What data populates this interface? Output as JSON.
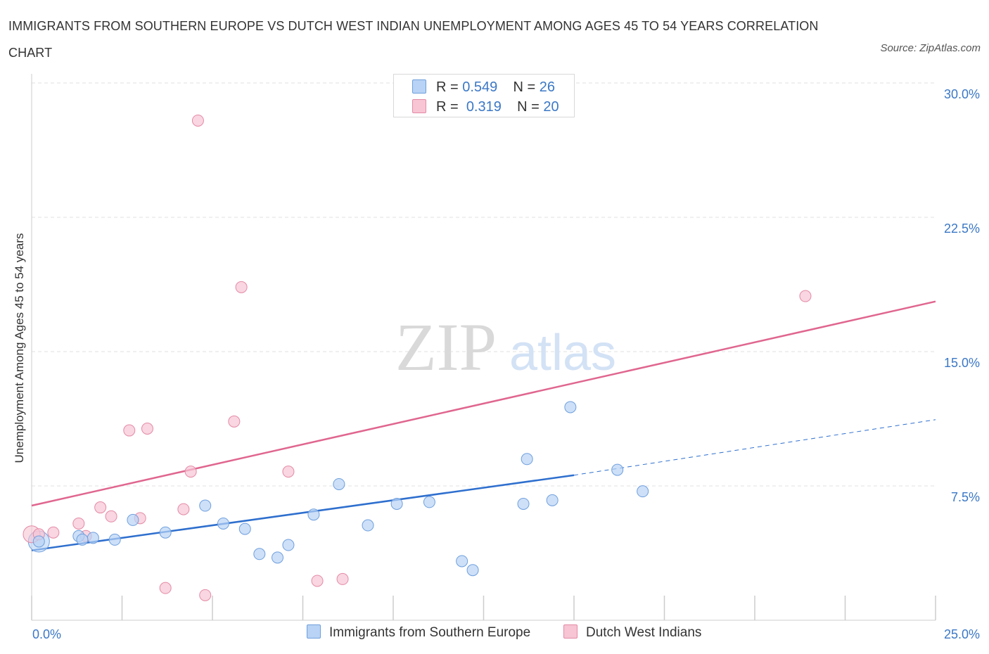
{
  "header": {
    "title": "IMMIGRANTS FROM SOUTHERN EUROPE VS DUTCH WEST INDIAN UNEMPLOYMENT AMONG AGES 45 TO 54 YEARS CORRELATION CHART",
    "source": "Source: ZipAtlas.com"
  },
  "watermark": {
    "zip": "ZIP",
    "atlas": "atlas"
  },
  "legend_top": {
    "rows": [
      {
        "r_label": "R =",
        "r_value": "0.549",
        "n_label": "N =",
        "n_value": "26"
      },
      {
        "r_label": "R =",
        "r_value": "0.319",
        "n_label": "N =",
        "n_value": "20"
      }
    ]
  },
  "legend_bottom": [
    {
      "label": "Immigrants from Southern Europe"
    },
    {
      "label": "Dutch West Indians"
    }
  ],
  "colors": {
    "blue_fill": "#b8d3f5",
    "blue_stroke": "#6f9fdd",
    "blue_line": "#2e6fce",
    "pink_fill": "#f7c5d4",
    "pink_stroke": "#e48aa6",
    "pink_line": "#e0668f",
    "grid": "#e0e0e0",
    "tick_text": "#3b78c6"
  },
  "chart_data": {
    "type": "scatter",
    "ylabel": "Unemployment Among Ages 45 to 54 years",
    "xlim": [
      0,
      25
    ],
    "ylim": [
      0,
      30
    ],
    "x_tick_labels": [
      {
        "value": 0,
        "label": "0.0%"
      },
      {
        "value": 25,
        "label": "25.0%"
      }
    ],
    "y_tick_labels": [
      {
        "value": 7.5,
        "label": "7.5%"
      },
      {
        "value": 15,
        "label": "15.0%"
      },
      {
        "value": 22.5,
        "label": "22.5%"
      },
      {
        "value": 30,
        "label": "30.0%"
      }
    ],
    "series": [
      {
        "name": "Immigrants from Southern Europe",
        "points": [
          [
            0.2,
            4.4
          ],
          [
            1.3,
            4.7
          ],
          [
            1.7,
            4.6
          ],
          [
            2.3,
            4.5
          ],
          [
            2.8,
            5.6
          ],
          [
            3.7,
            4.9
          ],
          [
            4.8,
            6.4
          ],
          [
            5.3,
            5.4
          ],
          [
            5.9,
            5.1
          ],
          [
            6.3,
            3.7
          ],
          [
            6.8,
            3.5
          ],
          [
            7.1,
            4.2
          ],
          [
            7.8,
            5.9
          ],
          [
            8.5,
            7.6
          ],
          [
            9.3,
            5.3
          ],
          [
            10.1,
            6.5
          ],
          [
            11.0,
            6.6
          ],
          [
            11.9,
            3.3
          ],
          [
            12.2,
            2.8
          ],
          [
            13.6,
            6.5
          ],
          [
            14.4,
            6.7
          ],
          [
            13.7,
            9.0
          ],
          [
            14.9,
            11.9
          ],
          [
            16.2,
            8.4
          ],
          [
            16.9,
            7.2
          ],
          [
            1.4,
            4.5
          ]
        ],
        "trend": {
          "x0": 0,
          "y0": 3.9,
          "x1": 15.0,
          "y1": 8.1,
          "x_dash_end": 25,
          "y_dash_end": 11.2
        }
      },
      {
        "name": "Dutch West Indians",
        "points": [
          [
            0.2,
            4.8
          ],
          [
            0.6,
            4.9
          ],
          [
            1.3,
            5.4
          ],
          [
            1.9,
            6.3
          ],
          [
            2.2,
            5.8
          ],
          [
            2.7,
            10.6
          ],
          [
            3.0,
            5.7
          ],
          [
            3.2,
            10.7
          ],
          [
            3.7,
            1.8
          ],
          [
            4.2,
            6.2
          ],
          [
            4.4,
            8.3
          ],
          [
            4.6,
            27.9
          ],
          [
            4.8,
            1.4
          ],
          [
            5.6,
            11.1
          ],
          [
            5.8,
            18.6
          ],
          [
            7.1,
            8.3
          ],
          [
            7.9,
            2.2
          ],
          [
            8.6,
            2.3
          ],
          [
            21.4,
            18.1
          ],
          [
            1.5,
            4.7
          ]
        ],
        "trend": {
          "x0": 0,
          "y0": 6.4,
          "x1": 25,
          "y1": 17.8
        }
      }
    ]
  }
}
